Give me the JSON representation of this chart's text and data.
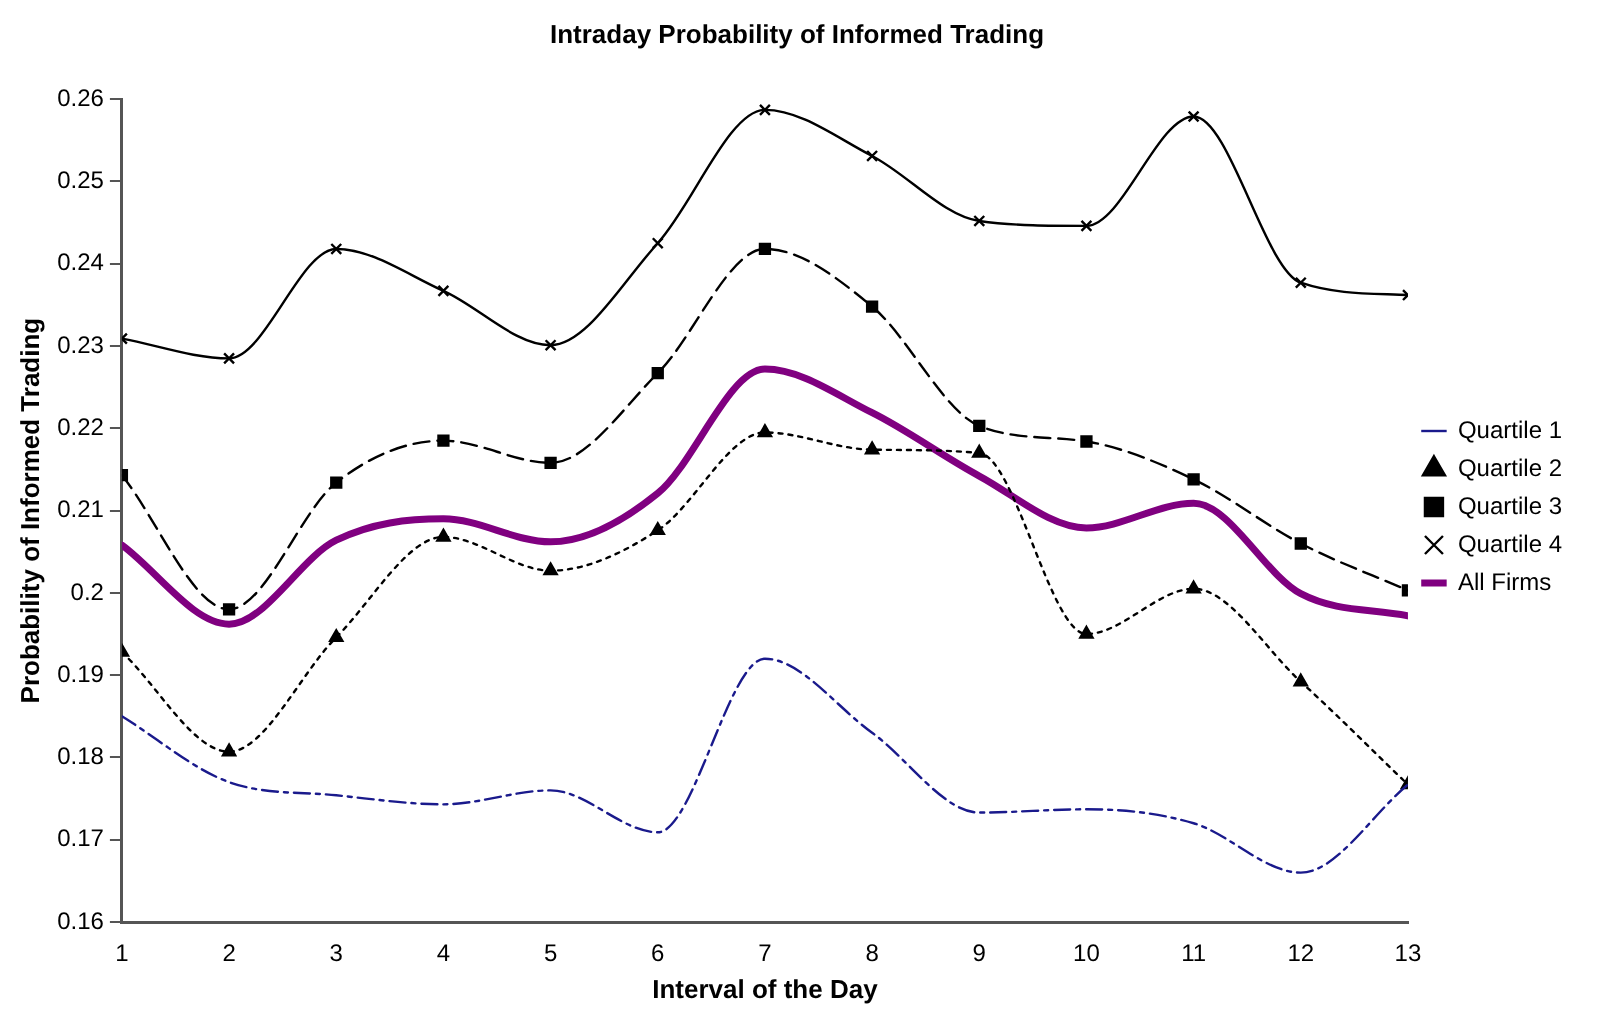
{
  "chart_data": {
    "type": "line",
    "title": "Intraday Probability of Informed Trading",
    "xlabel": "Interval of the Day",
    "ylabel": "Probability of Informed Trading",
    "x": [
      1,
      2,
      3,
      4,
      5,
      6,
      7,
      8,
      9,
      10,
      11,
      12,
      13
    ],
    "xlim": [
      1,
      13
    ],
    "xticks": [
      1,
      2,
      3,
      4,
      5,
      6,
      7,
      8,
      9,
      10,
      11,
      12,
      13
    ],
    "series": [
      {
        "name": "Quartile 1",
        "color": "#1a1a8c",
        "marker": "none",
        "line_style": "dashdot",
        "values": [
          0.185,
          0.177,
          0.1754,
          0.1743,
          0.176,
          0.1709,
          0.192,
          0.183,
          0.1733,
          0.1737,
          0.172,
          0.166,
          0.1767
        ]
      },
      {
        "name": "Quartile 2",
        "color": "#000000",
        "marker": "triangle",
        "line_style": "dotted",
        "values": [
          0.1928,
          0.1807,
          0.1946,
          0.2068,
          0.2027,
          0.2076,
          0.2195,
          0.2174,
          0.217,
          0.195,
          0.2005,
          0.1892,
          0.1767
        ]
      },
      {
        "name": "Quartile 3",
        "color": "#000000",
        "marker": "square",
        "line_style": "dashed",
        "values": [
          0.2143,
          0.198,
          0.2134,
          0.2185,
          0.2158,
          0.2267,
          0.2418,
          0.2348,
          0.2203,
          0.2184,
          0.2138,
          0.206,
          0.2003
        ]
      },
      {
        "name": "Quartile 4",
        "color": "#000000",
        "marker": "cross",
        "line_style": "solid",
        "values": [
          0.2309,
          0.2285,
          0.2418,
          0.2367,
          0.2301,
          0.2425,
          0.2587,
          0.2531,
          0.2452,
          0.2446,
          0.2579,
          0.2377,
          0.2362
        ]
      },
      {
        "name": "All Firms",
        "color": "#800080",
        "marker": "none",
        "line_style": "solid",
        "values": [
          0.2058,
          0.1962,
          0.2064,
          0.209,
          0.2062,
          0.2121,
          0.2272,
          0.2219,
          0.2142,
          0.2079,
          0.2109,
          0.1999,
          0.1972
        ]
      }
    ],
    "ylim": [
      0.16,
      0.26
    ],
    "yticks": [
      0.16,
      0.17,
      0.18,
      0.19,
      0.2,
      0.21,
      0.22,
      0.23,
      0.24,
      0.25,
      0.26
    ],
    "grid": false,
    "legend": "right"
  }
}
